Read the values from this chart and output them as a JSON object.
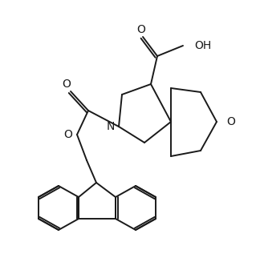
{
  "background_color": "#ffffff",
  "line_color": "#1a1a1a",
  "line_width": 1.4,
  "font_size": 10,
  "figsize": [
    3.24,
    3.42
  ],
  "dpi": 100,
  "xlim": [
    0,
    324
  ],
  "ylim": [
    0,
    342
  ]
}
